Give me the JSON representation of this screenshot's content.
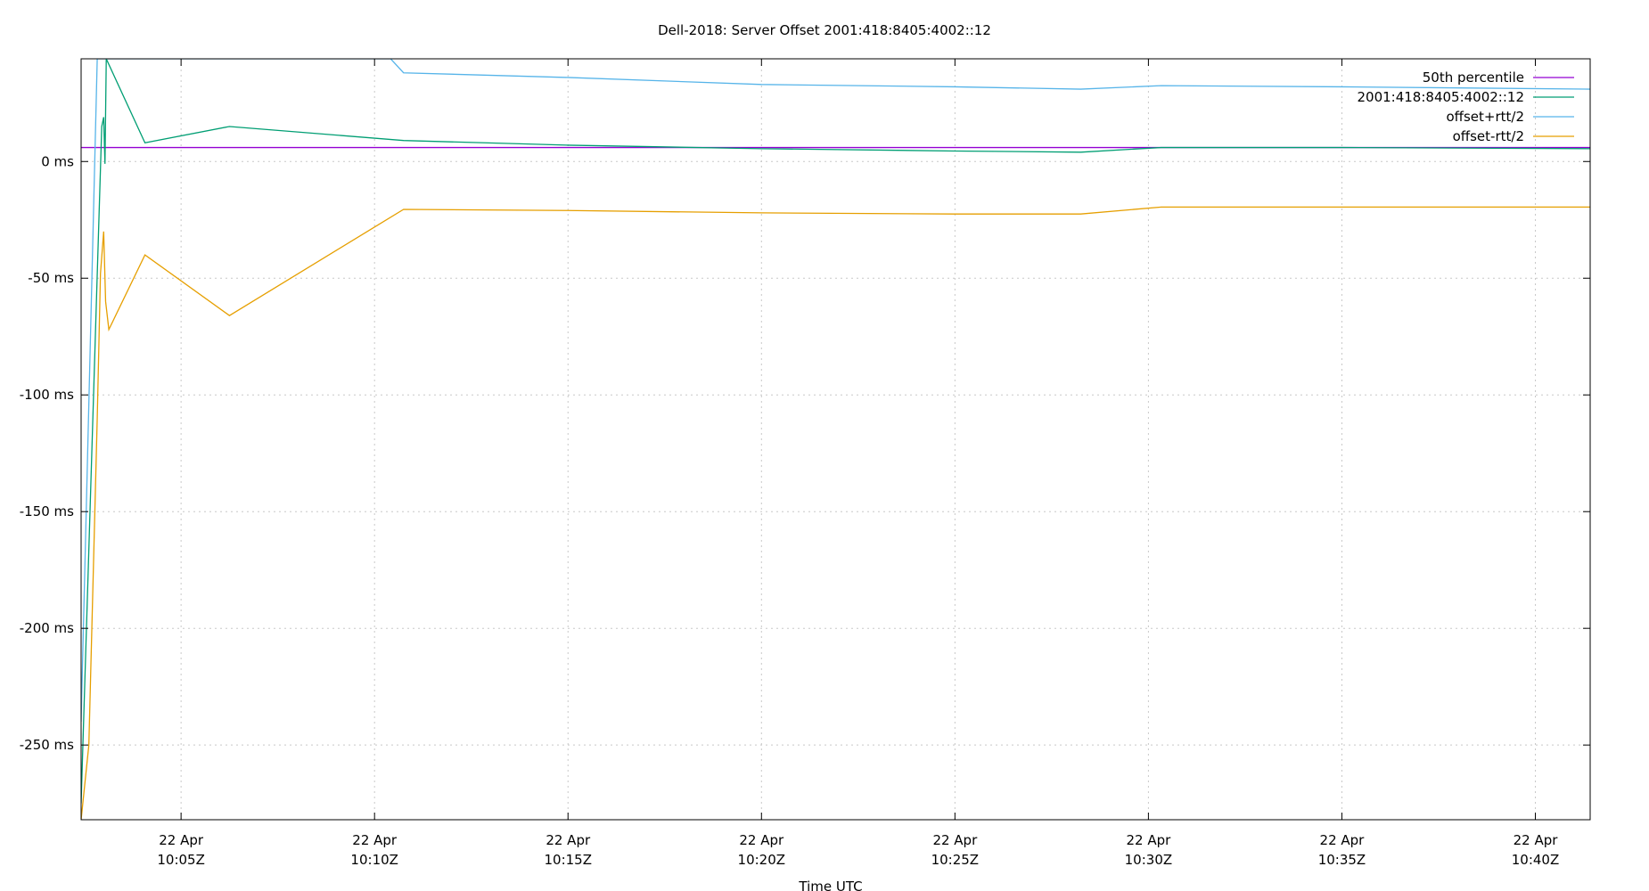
{
  "chart_data": {
    "type": "line",
    "title": "Dell-2018: Server Offset 2001:418:8405:4002::12",
    "xlabel": "Time UTC",
    "ylabel": "",
    "xlim": [
      "2024-04-22T10:02:25Z",
      "2024-04-22T10:41:25Z"
    ],
    "ylim": [
      -282,
      44
    ],
    "grid": true,
    "legend_position": "top-right",
    "x_ticks": [
      {
        "t": "2024-04-22T10:05:00Z",
        "line1": "22 Apr",
        "line2": "10:05Z"
      },
      {
        "t": "2024-04-22T10:10:00Z",
        "line1": "22 Apr",
        "line2": "10:10Z"
      },
      {
        "t": "2024-04-22T10:15:00Z",
        "line1": "22 Apr",
        "line2": "10:15Z"
      },
      {
        "t": "2024-04-22T10:20:00Z",
        "line1": "22 Apr",
        "line2": "10:20Z"
      },
      {
        "t": "2024-04-22T10:25:00Z",
        "line1": "22 Apr",
        "line2": "10:25Z"
      },
      {
        "t": "2024-04-22T10:30:00Z",
        "line1": "22 Apr",
        "line2": "10:30Z"
      },
      {
        "t": "2024-04-22T10:35:00Z",
        "line1": "22 Apr",
        "line2": "10:35Z"
      },
      {
        "t": "2024-04-22T10:40:00Z",
        "line1": "22 Apr",
        "line2": "10:40Z"
      }
    ],
    "y_ticks": [
      {
        "v": 0,
        "label": "0 ms"
      },
      {
        "v": -50,
        "label": "-50 ms"
      },
      {
        "v": -100,
        "label": "-100 ms"
      },
      {
        "v": -150,
        "label": "-150 ms"
      },
      {
        "v": -200,
        "label": "-200 ms"
      },
      {
        "v": -250,
        "label": "-250 ms"
      }
    ],
    "series": [
      {
        "name": "50th percentile",
        "color": "#9400d3",
        "points": [
          [
            "2024-04-22T10:02:25Z",
            6
          ],
          [
            "2024-04-22T10:41:25Z",
            6
          ]
        ]
      },
      {
        "name": "2001:418:8405:4002::12",
        "color": "#009e73",
        "points": [
          [
            "2024-04-22T10:02:25Z",
            -275
          ],
          [
            "2024-04-22T10:02:57Z",
            15
          ],
          [
            "2024-04-22T10:03:00Z",
            19
          ],
          [
            "2024-04-22T10:03:02Z",
            -1
          ],
          [
            "2024-04-22T10:03:04Z",
            45
          ],
          [
            "2024-04-22T10:04:04Z",
            8
          ],
          [
            "2024-04-22T10:06:15Z",
            15
          ],
          [
            "2024-04-22T10:10:45Z",
            9
          ],
          [
            "2024-04-22T10:15:00Z",
            7
          ],
          [
            "2024-04-22T10:20:00Z",
            5.5
          ],
          [
            "2024-04-22T10:25:00Z",
            4.5
          ],
          [
            "2024-04-22T10:28:15Z",
            4
          ],
          [
            "2024-04-22T10:30:20Z",
            6
          ],
          [
            "2024-04-22T10:35:00Z",
            6
          ],
          [
            "2024-04-22T10:41:25Z",
            5.5
          ]
        ]
      },
      {
        "name": "offset+rtt/2",
        "color": "#56b4e9",
        "points": [
          [
            "2024-04-22T10:02:25Z",
            -240
          ],
          [
            "2024-04-22T10:02:50Z",
            44
          ],
          [
            "2024-04-22T10:03:05Z",
            44
          ],
          [
            "2024-04-22T10:03:07Z",
            44
          ],
          [
            "2024-04-22T10:10:25Z",
            44
          ],
          [
            "2024-04-22T10:10:45Z",
            38
          ],
          [
            "2024-04-22T10:15:00Z",
            36
          ],
          [
            "2024-04-22T10:20:00Z",
            33
          ],
          [
            "2024-04-22T10:25:00Z",
            32
          ],
          [
            "2024-04-22T10:28:15Z",
            31
          ],
          [
            "2024-04-22T10:30:20Z",
            32.5
          ],
          [
            "2024-04-22T10:35:00Z",
            32
          ],
          [
            "2024-04-22T10:41:25Z",
            31
          ]
        ]
      },
      {
        "name": "offset-rtt/2",
        "color": "#e69f00",
        "points": [
          [
            "2024-04-22T10:02:25Z",
            -282
          ],
          [
            "2024-04-22T10:02:37Z",
            -250
          ],
          [
            "2024-04-22T10:02:50Z",
            -110
          ],
          [
            "2024-04-22T10:02:55Z",
            -48
          ],
          [
            "2024-04-22T10:03:00Z",
            -30
          ],
          [
            "2024-04-22T10:03:03Z",
            -60
          ],
          [
            "2024-04-22T10:03:08Z",
            -72
          ],
          [
            "2024-04-22T10:04:04Z",
            -40
          ],
          [
            "2024-04-22T10:06:15Z",
            -66
          ],
          [
            "2024-04-22T10:10:45Z",
            -20.5
          ],
          [
            "2024-04-22T10:15:00Z",
            -21
          ],
          [
            "2024-04-22T10:20:00Z",
            -22
          ],
          [
            "2024-04-22T10:25:00Z",
            -22.5
          ],
          [
            "2024-04-22T10:28:15Z",
            -22.5
          ],
          [
            "2024-04-22T10:30:20Z",
            -19.5
          ],
          [
            "2024-04-22T10:35:00Z",
            -19.5
          ],
          [
            "2024-04-22T10:41:25Z",
            -19.5
          ]
        ]
      }
    ]
  }
}
